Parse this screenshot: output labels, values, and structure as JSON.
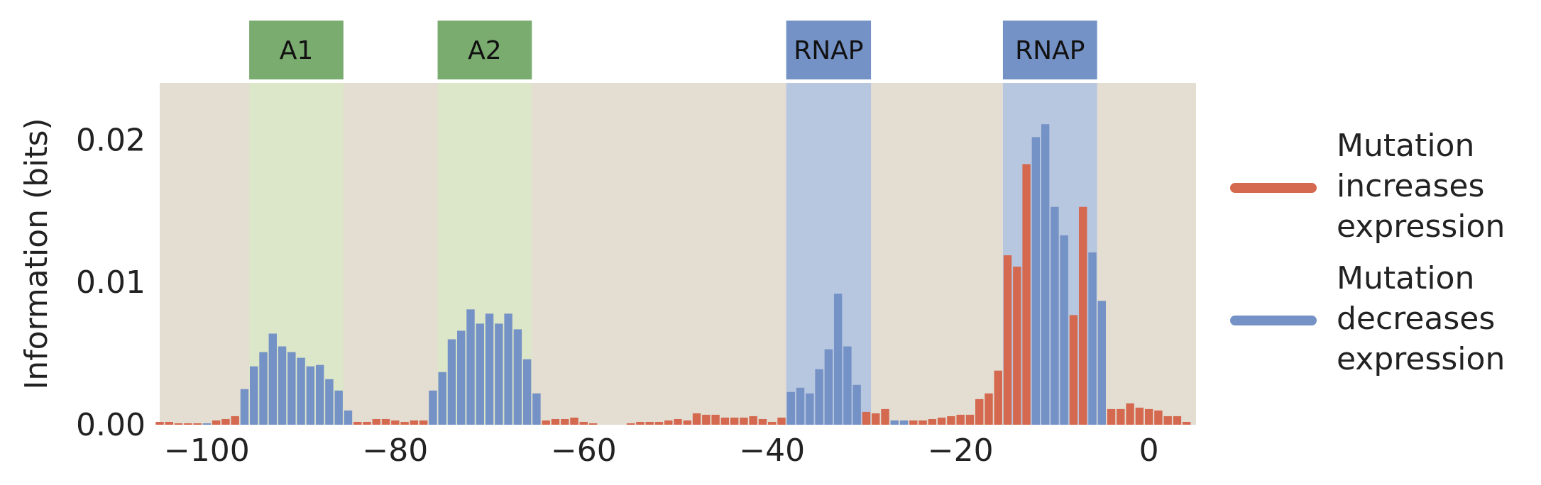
{
  "chart_data": {
    "type": "bar",
    "title": "",
    "xlabel": "",
    "ylabel": "Information (bits)",
    "xlim": [
      -105,
      5
    ],
    "ylim": [
      0,
      0.024
    ],
    "x_ticks": [
      -100,
      -80,
      -60,
      -40,
      -20,
      0
    ],
    "x_tick_labels": [
      "−100",
      "−80",
      "−60",
      "−40",
      "−20",
      "0"
    ],
    "y_ticks": [
      0.0,
      0.01,
      0.02
    ],
    "y_tick_labels": [
      "0.00",
      "0.01",
      "0.02"
    ],
    "grid": false,
    "legend_position": "right",
    "colors": {
      "plot_background": "#e3ddd2",
      "increase": "#d4694f",
      "decrease": "#7492c6",
      "activator_band": "#dce6c8",
      "activator_label": "#7aab6f",
      "rnap_band": "#b8c7e0",
      "rnap_label": "#7492c6"
    },
    "regions": [
      {
        "label": "A1",
        "start": -95.5,
        "end": -85.5,
        "kind": "activator"
      },
      {
        "label": "A2",
        "start": -75.5,
        "end": -65.5,
        "kind": "activator"
      },
      {
        "label": "RNAP",
        "start": -38.5,
        "end": -29.5,
        "kind": "rnap"
      },
      {
        "label": "RNAP",
        "start": -15.5,
        "end": -5.5,
        "kind": "rnap"
      }
    ],
    "series": [
      {
        "name": "Mutation increases expression",
        "color": "#d4694f"
      },
      {
        "name": "Mutation decreases expression",
        "color": "#7492c6"
      }
    ],
    "legend": [
      {
        "lines": [
          "Mutation",
          "increases",
          "expression"
        ],
        "color": "#d4694f"
      },
      {
        "lines": [
          "Mutation",
          "decreases",
          "expression"
        ],
        "color": "#7492c6"
      }
    ],
    "x": [
      -105,
      -104,
      -103,
      -102,
      -101,
      -100,
      -99,
      -98,
      -97,
      -96,
      -95,
      -94,
      -93,
      -92,
      -91,
      -90,
      -89,
      -88,
      -87,
      -86,
      -85,
      -84,
      -83,
      -82,
      -81,
      -80,
      -79,
      -78,
      -77,
      -76,
      -75,
      -74,
      -73,
      -72,
      -71,
      -70,
      -69,
      -68,
      -67,
      -66,
      -65,
      -64,
      -63,
      -62,
      -61,
      -60,
      -59,
      -58,
      -57,
      -56,
      -55,
      -54,
      -53,
      -52,
      -51,
      -50,
      -49,
      -48,
      -47,
      -46,
      -45,
      -44,
      -43,
      -42,
      -41,
      -40,
      -39,
      -38,
      -37,
      -36,
      -35,
      -34,
      -33,
      -32,
      -31,
      -30,
      -29,
      -28,
      -27,
      -26,
      -25,
      -24,
      -23,
      -22,
      -21,
      -20,
      -19,
      -18,
      -17,
      -16,
      -15,
      -14,
      -13,
      -12,
      -11,
      -10,
      -9,
      -8,
      -7,
      -6,
      -5,
      -4,
      -3,
      -2,
      -1,
      0,
      1,
      2,
      3,
      4
    ],
    "values": [
      0.0002,
      0.0002,
      0.0001,
      0.0001,
      0.0001,
      0.0001,
      0.0003,
      0.0004,
      0.0006,
      0.0025,
      0.0041,
      0.0051,
      0.0064,
      0.0055,
      0.0051,
      0.0047,
      0.0041,
      0.0042,
      0.0032,
      0.0024,
      0.001,
      0.0002,
      0.0002,
      0.0004,
      0.0004,
      0.0003,
      0.0002,
      0.0003,
      0.0003,
      0.0024,
      0.0037,
      0.006,
      0.0066,
      0.0081,
      0.0071,
      0.0078,
      0.0071,
      0.0078,
      0.0067,
      0.0046,
      0.0022,
      0.0003,
      0.0004,
      0.0004,
      0.0005,
      0.0002,
      0.0001,
      0.0,
      0.0,
      0.0,
      0.0001,
      0.0002,
      0.0002,
      0.0002,
      0.0003,
      0.0004,
      0.0003,
      0.0008,
      0.0007,
      0.0007,
      0.0005,
      0.0005,
      0.0005,
      0.0006,
      0.0004,
      0.0002,
      0.0005,
      0.0023,
      0.0026,
      0.0022,
      0.0039,
      0.0053,
      0.0092,
      0.0055,
      0.0028,
      0.0009,
      0.0008,
      0.0011,
      0.0003,
      0.0003,
      0.0003,
      0.0003,
      0.0004,
      0.0005,
      0.0006,
      0.0007,
      0.0007,
      0.0018,
      0.0022,
      0.0038,
      0.0119,
      0.0111,
      0.0183,
      0.0202,
      0.0211,
      0.0153,
      0.0133,
      0.0077,
      0.0153,
      0.0121,
      0.0087,
      0.0011,
      0.0011,
      0.0015,
      0.0012,
      0.0011,
      0.001,
      0.0006,
      0.0006,
      0.0002
    ],
    "direction": [
      "inc",
      "inc",
      "inc",
      "inc",
      "inc",
      "dec",
      "inc",
      "inc",
      "inc",
      "dec",
      "dec",
      "dec",
      "dec",
      "dec",
      "dec",
      "dec",
      "dec",
      "dec",
      "dec",
      "dec",
      "dec",
      "inc",
      "inc",
      "inc",
      "inc",
      "inc",
      "inc",
      "inc",
      "inc",
      "dec",
      "dec",
      "dec",
      "dec",
      "dec",
      "dec",
      "dec",
      "dec",
      "dec",
      "dec",
      "dec",
      "dec",
      "inc",
      "inc",
      "inc",
      "inc",
      "inc",
      "inc",
      "inc",
      "inc",
      "inc",
      "inc",
      "inc",
      "inc",
      "inc",
      "inc",
      "inc",
      "inc",
      "inc",
      "inc",
      "inc",
      "inc",
      "inc",
      "inc",
      "inc",
      "inc",
      "inc",
      "inc",
      "dec",
      "dec",
      "dec",
      "dec",
      "dec",
      "dec",
      "dec",
      "dec",
      "inc",
      "inc",
      "inc",
      "dec",
      "dec",
      "inc",
      "inc",
      "inc",
      "inc",
      "inc",
      "inc",
      "inc",
      "inc",
      "inc",
      "inc",
      "inc",
      "inc",
      "inc",
      "dec",
      "dec",
      "dec",
      "dec",
      "inc",
      "inc",
      "dec",
      "dec",
      "inc",
      "inc",
      "inc",
      "inc",
      "inc",
      "inc",
      "inc",
      "inc",
      "inc"
    ]
  }
}
